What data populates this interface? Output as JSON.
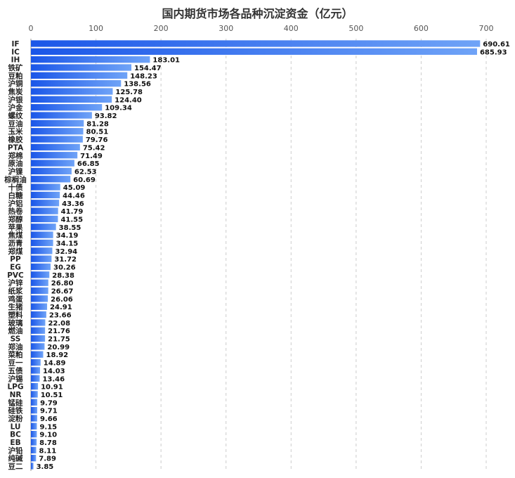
{
  "chart_data": {
    "type": "bar",
    "orientation": "horizontal",
    "title": "国内期货市场各品种沉淀资金（亿元）",
    "xlabel": "",
    "ylabel": "",
    "xlim": [
      0,
      700
    ],
    "ticks": [
      0,
      100,
      200,
      300,
      400,
      500,
      600,
      700
    ],
    "grid": "vertical-dashed",
    "axis_position": "top",
    "categories": [
      "IF",
      "IC",
      "IH",
      "铁矿",
      "豆粕",
      "沪铜",
      "焦炭",
      "沪银",
      "沪金",
      "螺纹",
      "豆油",
      "玉米",
      "橡胶",
      "PTA",
      "郑棉",
      "原油",
      "沪镍",
      "棕榈油",
      "十债",
      "白糖",
      "沪铝",
      "热卷",
      "郑醇",
      "苹果",
      "焦煤",
      "沥青",
      "郑煤",
      "PP",
      "EG",
      "PVC",
      "沪锌",
      "纸浆",
      "鸡蛋",
      "生猪",
      "塑料",
      "玻璃",
      "燃油",
      "SS",
      "郑油",
      "菜粕",
      "豆一",
      "五债",
      "沪锡",
      "LPG",
      "NR",
      "锰硅",
      "硅铁",
      "淀粉",
      "LU",
      "BC",
      "EB",
      "沪铅",
      "纯碱",
      "豆二"
    ],
    "values": [
      690.61,
      685.93,
      183.01,
      154.47,
      148.23,
      138.56,
      125.78,
      124.4,
      109.34,
      93.82,
      81.28,
      80.51,
      79.76,
      75.42,
      71.49,
      66.85,
      62.53,
      60.69,
      45.09,
      44.46,
      43.36,
      41.79,
      41.55,
      38.55,
      34.19,
      34.15,
      32.94,
      31.72,
      30.26,
      28.38,
      26.8,
      26.67,
      26.06,
      24.91,
      23.66,
      22.08,
      21.76,
      21.75,
      20.99,
      18.92,
      14.89,
      14.03,
      13.46,
      10.91,
      10.51,
      9.79,
      9.71,
      9.66,
      9.15,
      9.1,
      8.78,
      8.11,
      7.89,
      3.85
    ],
    "value_labels": [
      "690.61",
      "685.93",
      "183.01",
      "154.47",
      "148.23",
      "138.56",
      "125.78",
      "124.40",
      "109.34",
      "93.82",
      "81.28",
      "80.51",
      "79.76",
      "75.42",
      "71.49",
      "66.85",
      "62.53",
      "60.69",
      "45.09",
      "44.46",
      "43.36",
      "41.79",
      "41.55",
      "38.55",
      "34.19",
      "34.15",
      "32.94",
      "31.72",
      "30.26",
      "28.38",
      "26.80",
      "26.67",
      "26.06",
      "24.91",
      "23.66",
      "22.08",
      "21.76",
      "21.75",
      "20.99",
      "18.92",
      "14.89",
      "14.03",
      "13.46",
      "10.91",
      "10.51",
      "9.79",
      "9.71",
      "9.66",
      "9.15",
      "9.10",
      "8.78",
      "8.11",
      "7.89",
      "3.85"
    ],
    "colors": {
      "bar_start": "#1a56e8",
      "bar_end": "#6fa3f7",
      "grid": "#cccccc"
    }
  }
}
